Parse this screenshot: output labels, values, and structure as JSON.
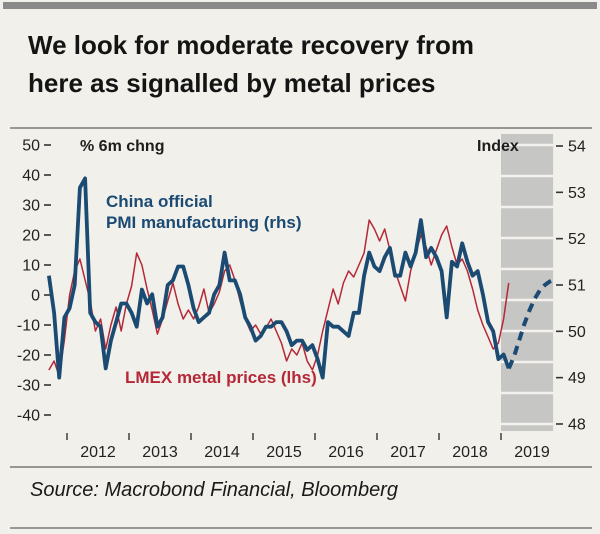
{
  "header": {
    "title_line1": "We look for moderate recovery from",
    "title_line2": "here as signalled by metal prices"
  },
  "footer": {
    "source": "Source: Macrobond Financial, Bloomberg"
  },
  "colors": {
    "background": "#f1f0ea",
    "pmi_blue": "#1b4a73",
    "lmex_red": "#b42837",
    "forecast_band": "#c6c6c4",
    "band_gridline": "#f3f2ee",
    "rule_gray": "#979794"
  },
  "chart_data": {
    "type": "line",
    "title": "We look for moderate recovery from here as signalled by metal prices",
    "left_axis": {
      "label": "% 6m chng",
      "ticks": [
        50,
        40,
        30,
        20,
        10,
        0,
        -10,
        -20,
        -30,
        -40
      ],
      "range": [
        -40,
        50
      ]
    },
    "right_axis": {
      "label": "Index",
      "ticks": [
        54,
        53,
        52,
        51,
        50,
        49,
        48
      ],
      "range": [
        48,
        54
      ]
    },
    "x_axis": {
      "year_ticks": [
        2012,
        2013,
        2014,
        2015,
        2016,
        2017,
        2018,
        2019
      ],
      "range": [
        2011.6,
        2019.9
      ]
    },
    "forecast_band": {
      "start": 2019.0,
      "end": 2019.84
    },
    "legend": {
      "pmi_line1": "China official",
      "pmi_line2": "PMI manufacturing (rhs)",
      "lmex": "LMEX metal prices (lhs)"
    },
    "series": [
      {
        "name": "LMEX metal prices (lhs)",
        "axis": "left",
        "style": "solid",
        "color": "#b42837",
        "width": 1.5,
        "start": 2011.7083,
        "step": 0.083333,
        "values": [
          -25,
          -22,
          -27,
          -15,
          0,
          8,
          12,
          5,
          -2,
          -12,
          -8,
          -18,
          -10,
          -4,
          -12,
          -3,
          3,
          14,
          10,
          2,
          -5,
          -13,
          -8,
          -2,
          4,
          -3,
          -8,
          -5,
          -8,
          -4,
          2,
          -6,
          -3,
          1,
          8,
          10,
          5,
          -2,
          -8,
          -12,
          -10,
          -13,
          -11,
          -8,
          -12,
          -16,
          -22,
          -18,
          -20,
          -16,
          -22,
          -25,
          -20,
          -12,
          -5,
          2,
          -3,
          4,
          8,
          6,
          10,
          14,
          25,
          22,
          18,
          22,
          15,
          8,
          3,
          -2,
          8,
          14,
          20,
          16,
          10,
          15,
          20,
          23,
          16,
          10,
          12,
          8,
          2,
          -5,
          -10,
          -14,
          -18,
          -16,
          -8,
          4
        ]
      },
      {
        "name": "China official PMI manufacturing (rhs)",
        "axis": "right",
        "style": "solid",
        "color": "#1b4a73",
        "width": 3.8,
        "start": 2011.7083,
        "step": 0.083333,
        "values": [
          51.2,
          50.4,
          49.0,
          50.3,
          50.5,
          51.0,
          53.1,
          53.3,
          50.4,
          50.2,
          50.1,
          49.2,
          49.8,
          50.2,
          50.6,
          50.6,
          50.4,
          50.1,
          50.9,
          50.6,
          50.8,
          50.1,
          50.3,
          51.0,
          51.1,
          51.4,
          51.4,
          51.0,
          50.5,
          50.2,
          50.3,
          50.4,
          50.8,
          51.0,
          51.7,
          51.1,
          51.1,
          50.8,
          50.3,
          50.1,
          49.8,
          49.9,
          50.1,
          50.1,
          50.2,
          50.2,
          50.0,
          49.7,
          49.8,
          49.8,
          49.6,
          49.7,
          49.4,
          49.0,
          50.2,
          50.1,
          50.1,
          50.0,
          49.9,
          50.4,
          50.4,
          51.2,
          51.7,
          51.4,
          51.3,
          51.6,
          51.8,
          51.2,
          51.2,
          51.7,
          51.4,
          51.7,
          52.4,
          51.6,
          51.8,
          51.6,
          51.3,
          50.3,
          51.5,
          51.4,
          51.9,
          51.5,
          51.2,
          51.3,
          50.8,
          50.2,
          50.0,
          49.4,
          49.5,
          49.2
        ]
      },
      {
        "name": "China official PMI manufacturing forecast (rhs)",
        "axis": "right",
        "style": "dashed",
        "color": "#1b4a73",
        "width": 4,
        "start": 2019.125,
        "step": 0.083333,
        "values": [
          49.2,
          49.45,
          49.8,
          50.15,
          50.45,
          50.7,
          50.88,
          51.0,
          51.08,
          51.13
        ]
      }
    ]
  }
}
